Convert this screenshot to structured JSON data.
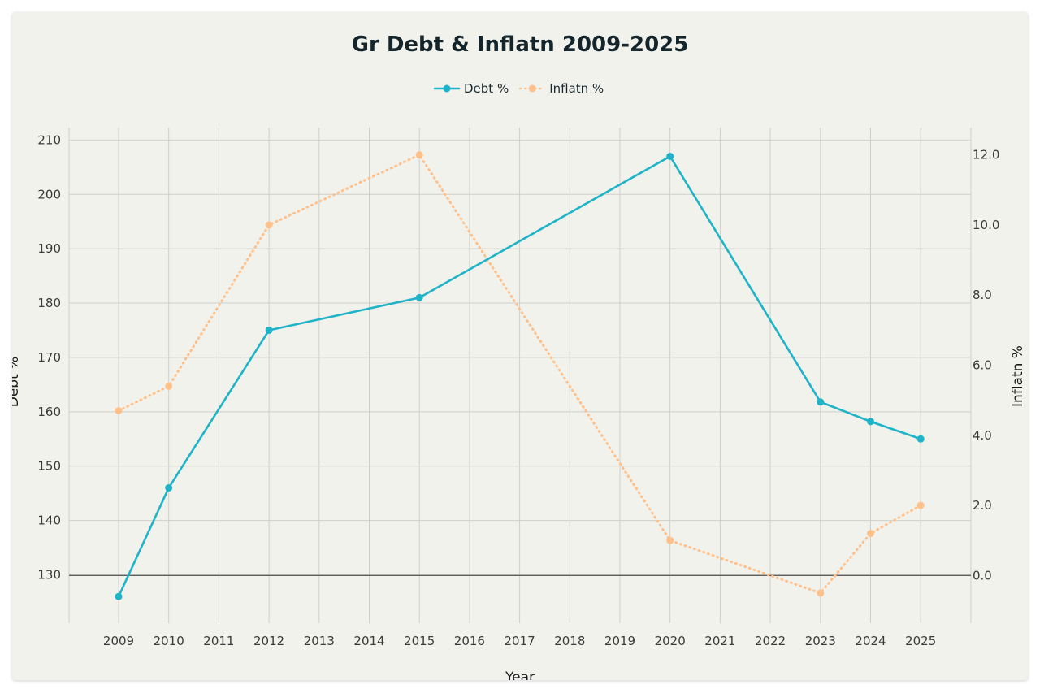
{
  "chart_data": {
    "type": "line",
    "title": "Gr Debt & Inflatn 2009-2025",
    "xlabel": "Year",
    "ylabel": "Debt %",
    "y2label": "Inflatn %",
    "x": [
      "2009",
      "2010",
      "2011",
      "2012",
      "2013",
      "2014",
      "2015",
      "2016",
      "2017",
      "2018",
      "2019",
      "2020",
      "2021",
      "2022",
      "2023",
      "2024",
      "2025"
    ],
    "y_ticks": [
      130,
      140,
      150,
      160,
      170,
      180,
      190,
      200,
      210
    ],
    "y2_ticks": [
      "0.0",
      "2.0",
      "4.0",
      "6.0",
      "8.0",
      "10.0",
      "12.0"
    ],
    "ylim": [
      121.1,
      212.3
    ],
    "y2lim": [
      -1.36,
      12.78
    ],
    "legend_position": "top-center",
    "grid": true,
    "series": [
      {
        "name": "Debt %",
        "axis": "left",
        "color": "#1fb3c8",
        "style": "solid",
        "points": [
          {
            "x": "2009",
            "y": 126.0
          },
          {
            "x": "2010",
            "y": 146.0
          },
          {
            "x": "2012",
            "y": 175.0
          },
          {
            "x": "2015",
            "y": 181.0
          },
          {
            "x": "2020",
            "y": 207.0
          },
          {
            "x": "2023",
            "y": 161.8
          },
          {
            "x": "2024",
            "y": 158.2
          },
          {
            "x": "2025",
            "y": 155.0
          }
        ]
      },
      {
        "name": "Inflatn %",
        "axis": "right",
        "color": "#ffc08a",
        "style": "dotted",
        "points": [
          {
            "x": "2009",
            "y": 4.7
          },
          {
            "x": "2010",
            "y": 5.4
          },
          {
            "x": "2012",
            "y": 10.0
          },
          {
            "x": "2015",
            "y": 12.0
          },
          {
            "x": "2020",
            "y": 1.0
          },
          {
            "x": "2023",
            "y": -0.5
          },
          {
            "x": "2024",
            "y": 1.2
          },
          {
            "x": "2025",
            "y": 2.0
          }
        ]
      }
    ]
  }
}
